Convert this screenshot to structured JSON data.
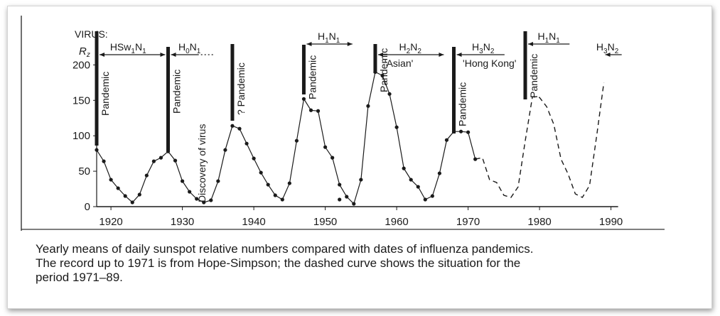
{
  "caption": {
    "line1": "Yearly means of daily sunspot relative numbers compared with dates of influenza pandemics.",
    "line2": "The record up to 1971 is from Hope-Simpson; the dashed curve shows the situation for the",
    "line3": "period 1971–89."
  },
  "chart_data": {
    "type": "line",
    "title": "",
    "xlabel": "",
    "ylabel": "Rz",
    "virus_label": "VIRUS:",
    "xlim": [
      1918,
      1991
    ],
    "ylim": [
      0,
      210
    ],
    "x_ticks": [
      1920,
      1930,
      1940,
      1950,
      1960,
      1970,
      1980,
      1990
    ],
    "y_ticks": [
      0,
      50,
      100,
      150,
      200
    ],
    "series": [
      {
        "style": "solid-with-points",
        "x": [
          1918,
          1919,
          1920,
          1921,
          1922,
          1923,
          1924,
          1925,
          1926,
          1927,
          1928,
          1929,
          1930,
          1931,
          1932,
          1933,
          1934,
          1935,
          1936,
          1937,
          1938,
          1939,
          1940,
          1941,
          1942,
          1943,
          1944,
          1945,
          1946,
          1947,
          1948,
          1949,
          1950,
          1951,
          1952,
          1953,
          1954,
          1955,
          1956,
          1957,
          1958,
          1959,
          1960,
          1961,
          1962,
          1963,
          1964,
          1965,
          1966,
          1967,
          1968,
          1969,
          1970,
          1971
        ],
        "y": [
          80,
          64,
          38,
          26,
          15,
          6,
          17,
          44,
          64,
          69,
          78,
          65,
          36,
          21,
          11,
          6,
          9,
          36,
          80,
          114,
          110,
          89,
          68,
          48,
          31,
          16,
          10,
          33,
          93,
          152,
          136,
          135,
          84,
          69,
          31,
          14,
          4,
          38,
          142,
          190,
          185,
          159,
          112,
          54,
          38,
          28,
          10,
          15,
          47,
          94,
          106,
          106,
          105,
          67
        ]
      },
      {
        "style": "dashed",
        "x": [
          1971,
          1972,
          1973,
          1974,
          1975,
          1976,
          1977,
          1978,
          1979,
          1980,
          1981,
          1982,
          1983,
          1984,
          1985,
          1986,
          1987,
          1988,
          1989
        ],
        "y": [
          67,
          69,
          38,
          34,
          16,
          13,
          28,
          93,
          155,
          154,
          141,
          116,
          67,
          46,
          18,
          13,
          30,
          100,
          175
        ]
      }
    ],
    "isolated_points": [
      {
        "x": 1952,
        "y": 10
      }
    ],
    "pandemics": [
      {
        "year": 1918,
        "label": "Pandemic"
      },
      {
        "year": 1928,
        "label": "Pandemic"
      },
      {
        "year": 1937,
        "label": "? Pandemic"
      },
      {
        "year": 1947,
        "label": "Pandemic"
      },
      {
        "year": 1957,
        "label": "Pandemic"
      },
      {
        "year": 1968,
        "label": "Pandemic"
      },
      {
        "year": 1978,
        "label": "Pandemic"
      }
    ],
    "discovery_label": "Discovery of virus",
    "virus_periods": [
      {
        "base": "HSw",
        "sub1": "1",
        "mid": "N",
        "sub2": "1",
        "note": ""
      },
      {
        "base": "H",
        "sub1": "0",
        "mid": "N",
        "sub2": "1",
        "note": ""
      },
      {
        "base": "H",
        "sub1": "1",
        "mid": "N",
        "sub2": "1",
        "note": ""
      },
      {
        "base": "H",
        "sub1": "2",
        "mid": "N",
        "sub2": "2",
        "note": "'Asian'"
      },
      {
        "base": "H",
        "sub1": "3",
        "mid": "N",
        "sub2": "2",
        "note": "'Hong Kong'"
      },
      {
        "base": "H",
        "sub1": "1",
        "mid": "N",
        "sub2": "1",
        "note": ""
      },
      {
        "base": "H",
        "sub1": "3",
        "mid": "N",
        "sub2": "2",
        "note": ""
      }
    ],
    "line_color": "#1a1a1a"
  }
}
